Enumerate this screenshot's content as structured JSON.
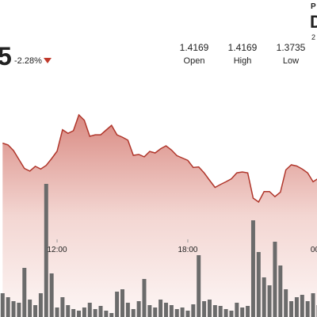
{
  "header": {
    "price": "5",
    "change": "-2.28%",
    "stats": [
      {
        "value": "1.4169",
        "label": "Open"
      },
      {
        "value": "1.4169",
        "label": "High"
      },
      {
        "value": "1.3735",
        "label": "Low"
      }
    ],
    "corner": [
      "P",
      "D",
      "2"
    ]
  },
  "chart_data": {
    "type": "line",
    "x": [
      9.5,
      9.75,
      10,
      10.25,
      10.5,
      10.75,
      11,
      11.25,
      11.5,
      11.75,
      12,
      12.25,
      12.5,
      12.75,
      13,
      13.25,
      13.5,
      13.75,
      14,
      14.25,
      14.5,
      14.75,
      15,
      15.25,
      15.5,
      15.75,
      16,
      16.25,
      16.5,
      16.75,
      17,
      17.25,
      17.5,
      17.75,
      18,
      18.25,
      18.5,
      18.75,
      19,
      19.25,
      19.5,
      19.75,
      20,
      20.25,
      20.5,
      20.75,
      21,
      21.25,
      21.5,
      21.75,
      22,
      22.25,
      22.5,
      22.75,
      23,
      23.25,
      23.5,
      23.75,
      24
    ],
    "xlim": [
      9.38,
      23.93
    ],
    "xticks": [
      {
        "value": 12,
        "label": "12:00"
      },
      {
        "value": 18,
        "label": "18:00"
      },
      {
        "value": 24,
        "label": "00"
      }
    ],
    "ylim": [
      1.35,
      1.43
    ],
    "y2lim": [
      0,
      400
    ],
    "series": [
      {
        "color": "#b0362b",
        "values": [
          1.4085,
          1.4079,
          1.406,
          1.403,
          1.4,
          1.3991,
          1.4007,
          1.3998,
          1.401,
          1.4033,
          1.4058,
          1.413,
          1.4118,
          1.4127,
          1.418,
          1.4162,
          1.4108,
          1.4113,
          1.4113,
          1.4129,
          1.4145,
          1.4113,
          1.4105,
          1.4095,
          1.4044,
          1.4047,
          1.4039,
          1.4057,
          1.4052,
          1.4066,
          1.4076,
          1.4062,
          1.4043,
          1.4035,
          1.4027,
          1.4003,
          1.4005,
          1.3985,
          1.396,
          1.3936,
          1.3946,
          1.3955,
          1.3965,
          1.3985,
          1.3988,
          1.3985,
          1.39,
          1.3887,
          1.3922,
          1.3922,
          1.3905,
          1.392,
          1.3995,
          1.4012,
          1.4008,
          1.3998,
          1.3985,
          1.3955,
          1.3967
        ]
      },
      {
        "type": "bar",
        "axis": "y2",
        "color": "#6b6b6b",
        "values": [
          30,
          25,
          20,
          18,
          62,
          22,
          15,
          30,
          168,
          55,
          12,
          25,
          15,
          10,
          8,
          12,
          18,
          10,
          14,
          8,
          5,
          32,
          35,
          18,
          10,
          20,
          48,
          15,
          12,
          22,
          18,
          15,
          10,
          12,
          8,
          16,
          78,
          20,
          22,
          15,
          14,
          10,
          8,
          18,
          12,
          14,
          122,
          82,
          50,
          40,
          95,
          65,
          35,
          20,
          25,
          28,
          20,
          30,
          15
        ]
      }
    ]
  }
}
